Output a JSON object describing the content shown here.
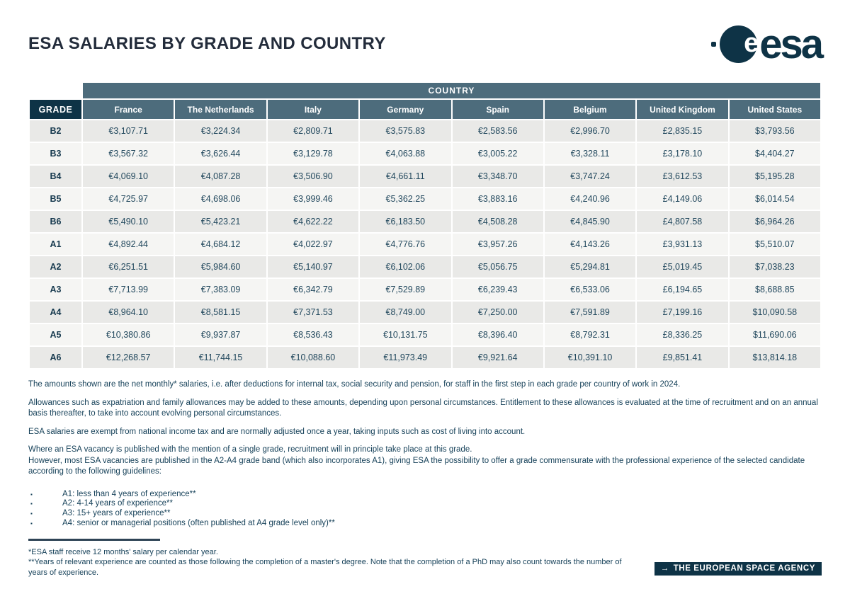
{
  "page": {
    "title": "ESA SALARIES BY GRADE AND COUNTRY"
  },
  "logo": {
    "symbol_letter": "e",
    "wordmark": "esa"
  },
  "colors": {
    "navy": "#0e3346",
    "slate": "#4d6c7c",
    "row_odd": "#e9e9e7",
    "row_even": "#f5f5f3",
    "text": "#17425a"
  },
  "table": {
    "country_banner": "COUNTRY",
    "grade_header": "GRADE",
    "columns": [
      "France",
      "The Netherlands",
      "Italy",
      "Germany",
      "Spain",
      "Belgium",
      "United Kingdom",
      "United States"
    ],
    "rows": [
      {
        "grade": "B2",
        "values": [
          "€3,107.71",
          "€3,224.34",
          "€2,809.71",
          "€3,575.83",
          "€2,583.56",
          "€2,996.70",
          "£2,835.15",
          "$3,793.56"
        ]
      },
      {
        "grade": "B3",
        "values": [
          "€3,567.32",
          "€3,626.44",
          "€3,129.78",
          "€4,063.88",
          "€3,005.22",
          "€3,328.11",
          "£3,178.10",
          "$4,404.27"
        ]
      },
      {
        "grade": "B4",
        "values": [
          "€4,069.10",
          "€4,087.28",
          "€3,506.90",
          "€4,661.11",
          "€3,348.70",
          "€3,747.24",
          "£3,612.53",
          "$5,195.28"
        ]
      },
      {
        "grade": "B5",
        "values": [
          "€4,725.97",
          "€4,698.06",
          "€3,999.46",
          "€5,362.25",
          "€3,883.16",
          "€4,240.96",
          "£4,149.06",
          "$6,014.54"
        ]
      },
      {
        "grade": "B6",
        "values": [
          "€5,490.10",
          "€5,423.21",
          "€4,622.22",
          "€6,183.50",
          "€4,508.28",
          "€4,845.90",
          "£4,807.58",
          "$6,964.26"
        ]
      },
      {
        "grade": "A1",
        "values": [
          "€4,892.44",
          "€4,684.12",
          "€4,022.97",
          "€4,776.76",
          "€3,957.26",
          "€4,143.26",
          "£3,931.13",
          "$5,510.07"
        ]
      },
      {
        "grade": "A2",
        "values": [
          "€6,251.51",
          "€5,984.60",
          "€5,140.97",
          "€6,102.06",
          "€5,056.75",
          "€5,294.81",
          "£5,019.45",
          "$7,038.23"
        ]
      },
      {
        "grade": "A3",
        "values": [
          "€7,713.99",
          "€7,383.09",
          "€6,342.79",
          "€7,529.89",
          "€6,239.43",
          "€6,533.06",
          "£6,194.65",
          "$8,688.85"
        ]
      },
      {
        "grade": "A4",
        "values": [
          "€8,964.10",
          "€8,581.15",
          "€7,371.53",
          "€8,749.00",
          "€7,250.00",
          "€7,591.89",
          "£7,199.16",
          "$10,090.58"
        ]
      },
      {
        "grade": "A5",
        "values": [
          "€10,380.86",
          "€9,937.87",
          "€8,536.43",
          "€10,131.75",
          "€8,396.40",
          "€8,792.31",
          "£8,336.25",
          "$11,690.06"
        ]
      },
      {
        "grade": "A6",
        "values": [
          "€12,268.57",
          "€11,744.15",
          "€10,088.60",
          "€11,973.49",
          "€9,921.64",
          "€10,391.10",
          "£9,851.41",
          "$13,814.18"
        ]
      }
    ]
  },
  "notes": {
    "p1": "The amounts shown are the net monthly* salaries, i.e. after deductions for internal tax, social security and pension, for staff in the first step in each grade per country of work in 2024.",
    "p2": "Allowances such as expatriation and family allowances may be added to these amounts, depending upon personal circumstances. Entitlement to these allowances is evaluated at the time of recruitment and on an annual basis thereafter, to take into account evolving personal circumstances.",
    "p3": "ESA salaries are exempt from national income tax and are normally adjusted once a year, taking inputs such as cost of living into account.",
    "p4_line1": "Where an ESA vacancy is published with the mention of a single grade, recruitment will in principle take place at this grade.",
    "p4_line2": "However, most ESA vacancies are published in the A2-A4 grade band (which also incorporates A1), giving ESA the possibility to offer a grade commensurate with the professional experience of the selected candidate according to the following guidelines:",
    "bullets": [
      "A1: less than 4 years of experience**",
      "A2: 4-14 years of experience**",
      "A3: 15+ years of experience**",
      "A4: senior or managerial positions (often published at A4 grade level only)**"
    ]
  },
  "footnotes": {
    "f1": "*ESA staff receive 12 months' salary per calendar year.",
    "f2": "**Years of relevant experience are counted as those following the completion of a master's degree. Note that the completion of a PhD may also count towards the number of years of experience."
  },
  "badge": {
    "icon": "→",
    "label": "THE EUROPEAN SPACE AGENCY"
  }
}
